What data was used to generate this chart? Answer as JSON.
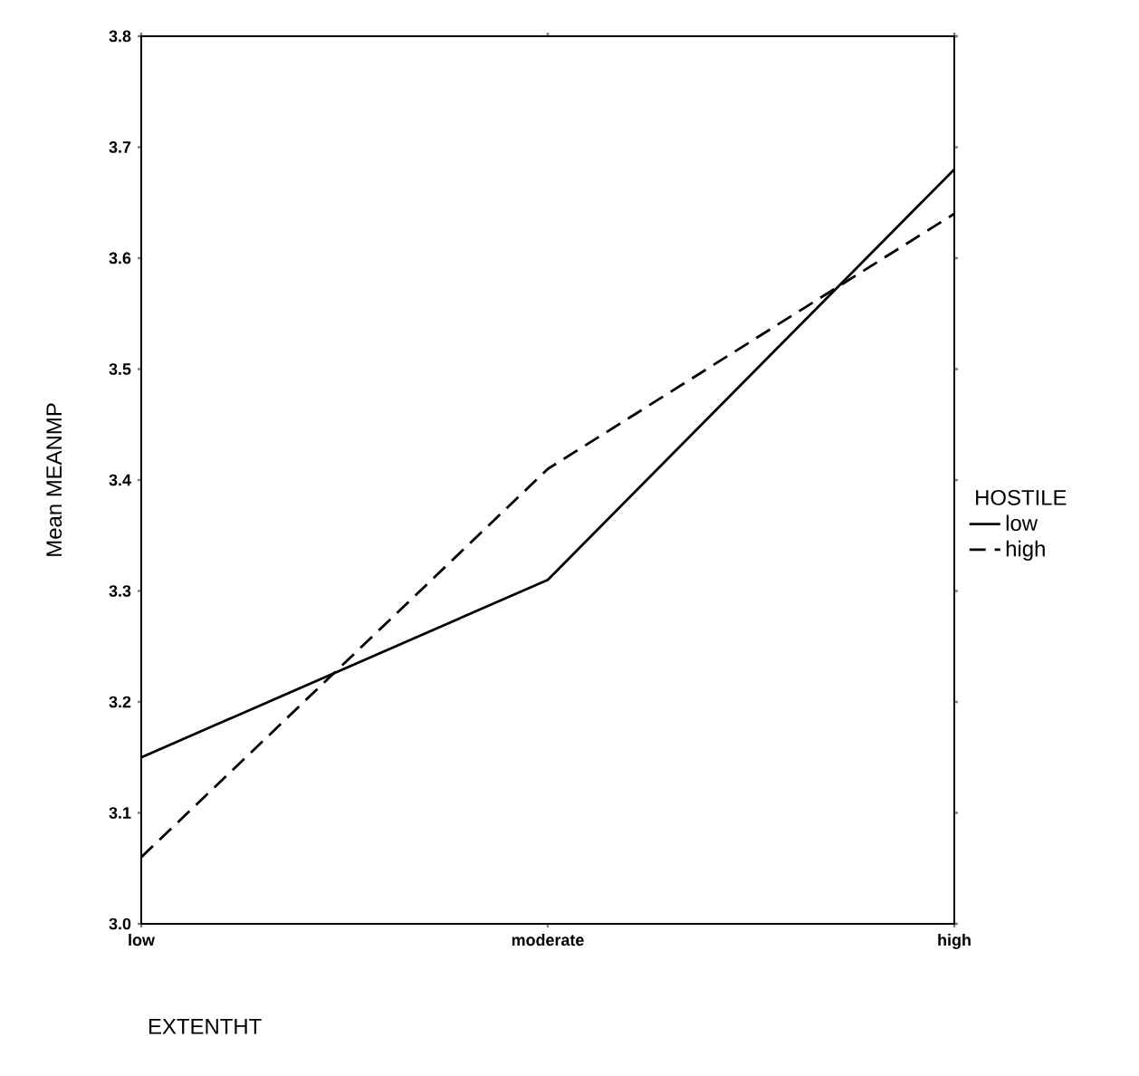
{
  "chart_data": {
    "type": "line",
    "xlabel": "EXTENTHT",
    "ylabel": "Mean MEANMP",
    "legend_title": "HOSTILE",
    "legend": "right",
    "categories": [
      "low",
      "moderate",
      "high"
    ],
    "series": [
      {
        "name": "low",
        "color": "#000000",
        "line_style": "solid",
        "values": [
          3.15,
          3.31,
          3.68
        ]
      },
      {
        "name": "high",
        "color": "#000000",
        "line_style": "dashed",
        "values": [
          3.06,
          3.41,
          3.64
        ]
      }
    ],
    "ylim": [
      3.0,
      3.8
    ],
    "yticks": [
      {
        "value": 3.0,
        "label": "3.0"
      },
      3.1,
      3.2,
      3.3,
      3.4,
      3.5,
      3.6,
      3.7,
      3.8
    ],
    "grid": false
  }
}
